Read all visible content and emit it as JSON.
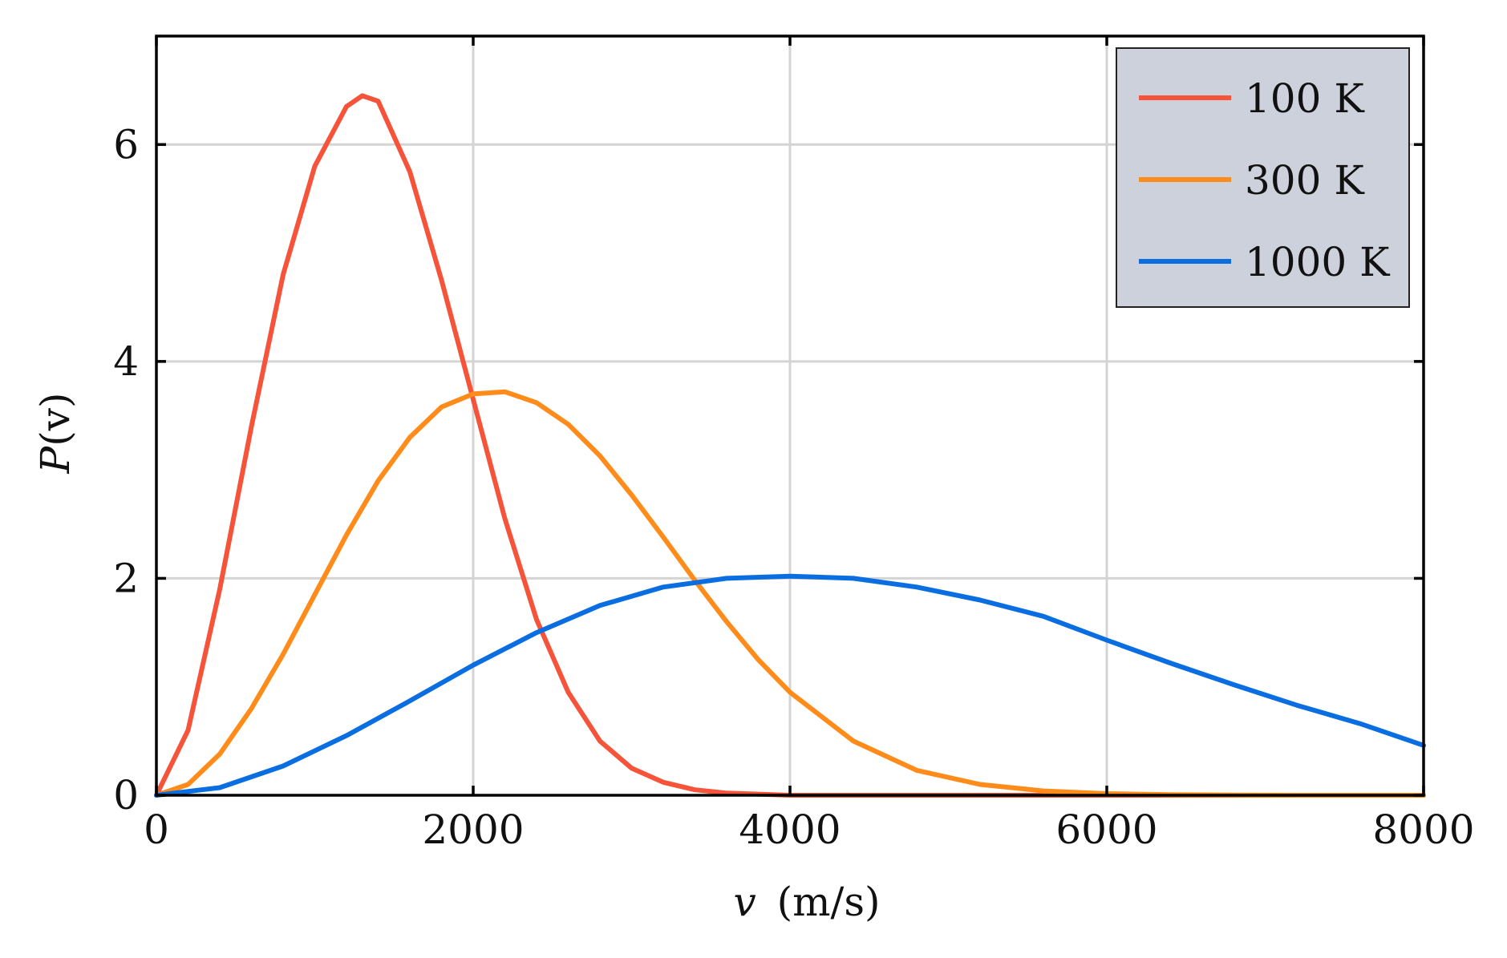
{
  "chart_data": {
    "type": "line",
    "xlabel_var": "v",
    "xlabel_unit": "(m/s)",
    "ylabel_var": "P",
    "ylabel_arg": "(v)",
    "xlim": [
      0,
      8000
    ],
    "ylim": [
      0,
      7
    ],
    "x_ticks": [
      0,
      2000,
      4000,
      6000,
      8000
    ],
    "y_ticks": [
      0,
      2,
      4,
      6
    ],
    "x_tick_labels": [
      "0",
      "2000",
      "4000",
      "6000",
      "8000"
    ],
    "y_tick_labels": [
      "0",
      "2",
      "4",
      "6"
    ],
    "grid": true,
    "legend_position": "top-right",
    "series": [
      {
        "name": "100 K",
        "color": "#f5533a",
        "x": [
          0,
          200,
          400,
          600,
          800,
          1000,
          1200,
          1300,
          1400,
          1600,
          1800,
          2000,
          2200,
          2400,
          2600,
          2800,
          3000,
          3200,
          3400,
          3600,
          3800,
          4000,
          5000,
          6000,
          7000,
          8000
        ],
        "y": [
          0,
          0.6,
          1.9,
          3.4,
          4.8,
          5.8,
          6.35,
          6.45,
          6.4,
          5.75,
          4.75,
          3.65,
          2.55,
          1.62,
          0.95,
          0.5,
          0.25,
          0.12,
          0.05,
          0.02,
          0.01,
          0.0,
          0.0,
          0.0,
          0.0,
          0.0
        ]
      },
      {
        "name": "300 K",
        "color": "#ff8c1a",
        "x": [
          0,
          200,
          400,
          600,
          800,
          1000,
          1200,
          1400,
          1600,
          1800,
          2000,
          2200,
          2400,
          2600,
          2800,
          3000,
          3200,
          3400,
          3600,
          3800,
          4000,
          4400,
          4800,
          5200,
          5600,
          6000,
          6400,
          6800,
          7200,
          7600,
          8000
        ],
        "y": [
          0,
          0.1,
          0.38,
          0.8,
          1.3,
          1.85,
          2.4,
          2.9,
          3.3,
          3.58,
          3.7,
          3.72,
          3.62,
          3.42,
          3.13,
          2.77,
          2.38,
          1.98,
          1.6,
          1.25,
          0.95,
          0.5,
          0.23,
          0.1,
          0.04,
          0.015,
          0.005,
          0.002,
          0.0,
          0.0,
          0.0
        ]
      },
      {
        "name": "1000 K",
        "color": "#0a6ee0",
        "x": [
          0,
          400,
          800,
          1200,
          1600,
          2000,
          2400,
          2800,
          3200,
          3600,
          4000,
          4400,
          4800,
          5200,
          5600,
          6000,
          6400,
          6800,
          7200,
          7600,
          8000
        ],
        "y": [
          0,
          0.07,
          0.27,
          0.55,
          0.87,
          1.2,
          1.5,
          1.75,
          1.92,
          2.0,
          2.02,
          2.0,
          1.92,
          1.8,
          1.65,
          1.43,
          1.22,
          1.02,
          0.83,
          0.66,
          0.46
        ]
      }
    ]
  }
}
